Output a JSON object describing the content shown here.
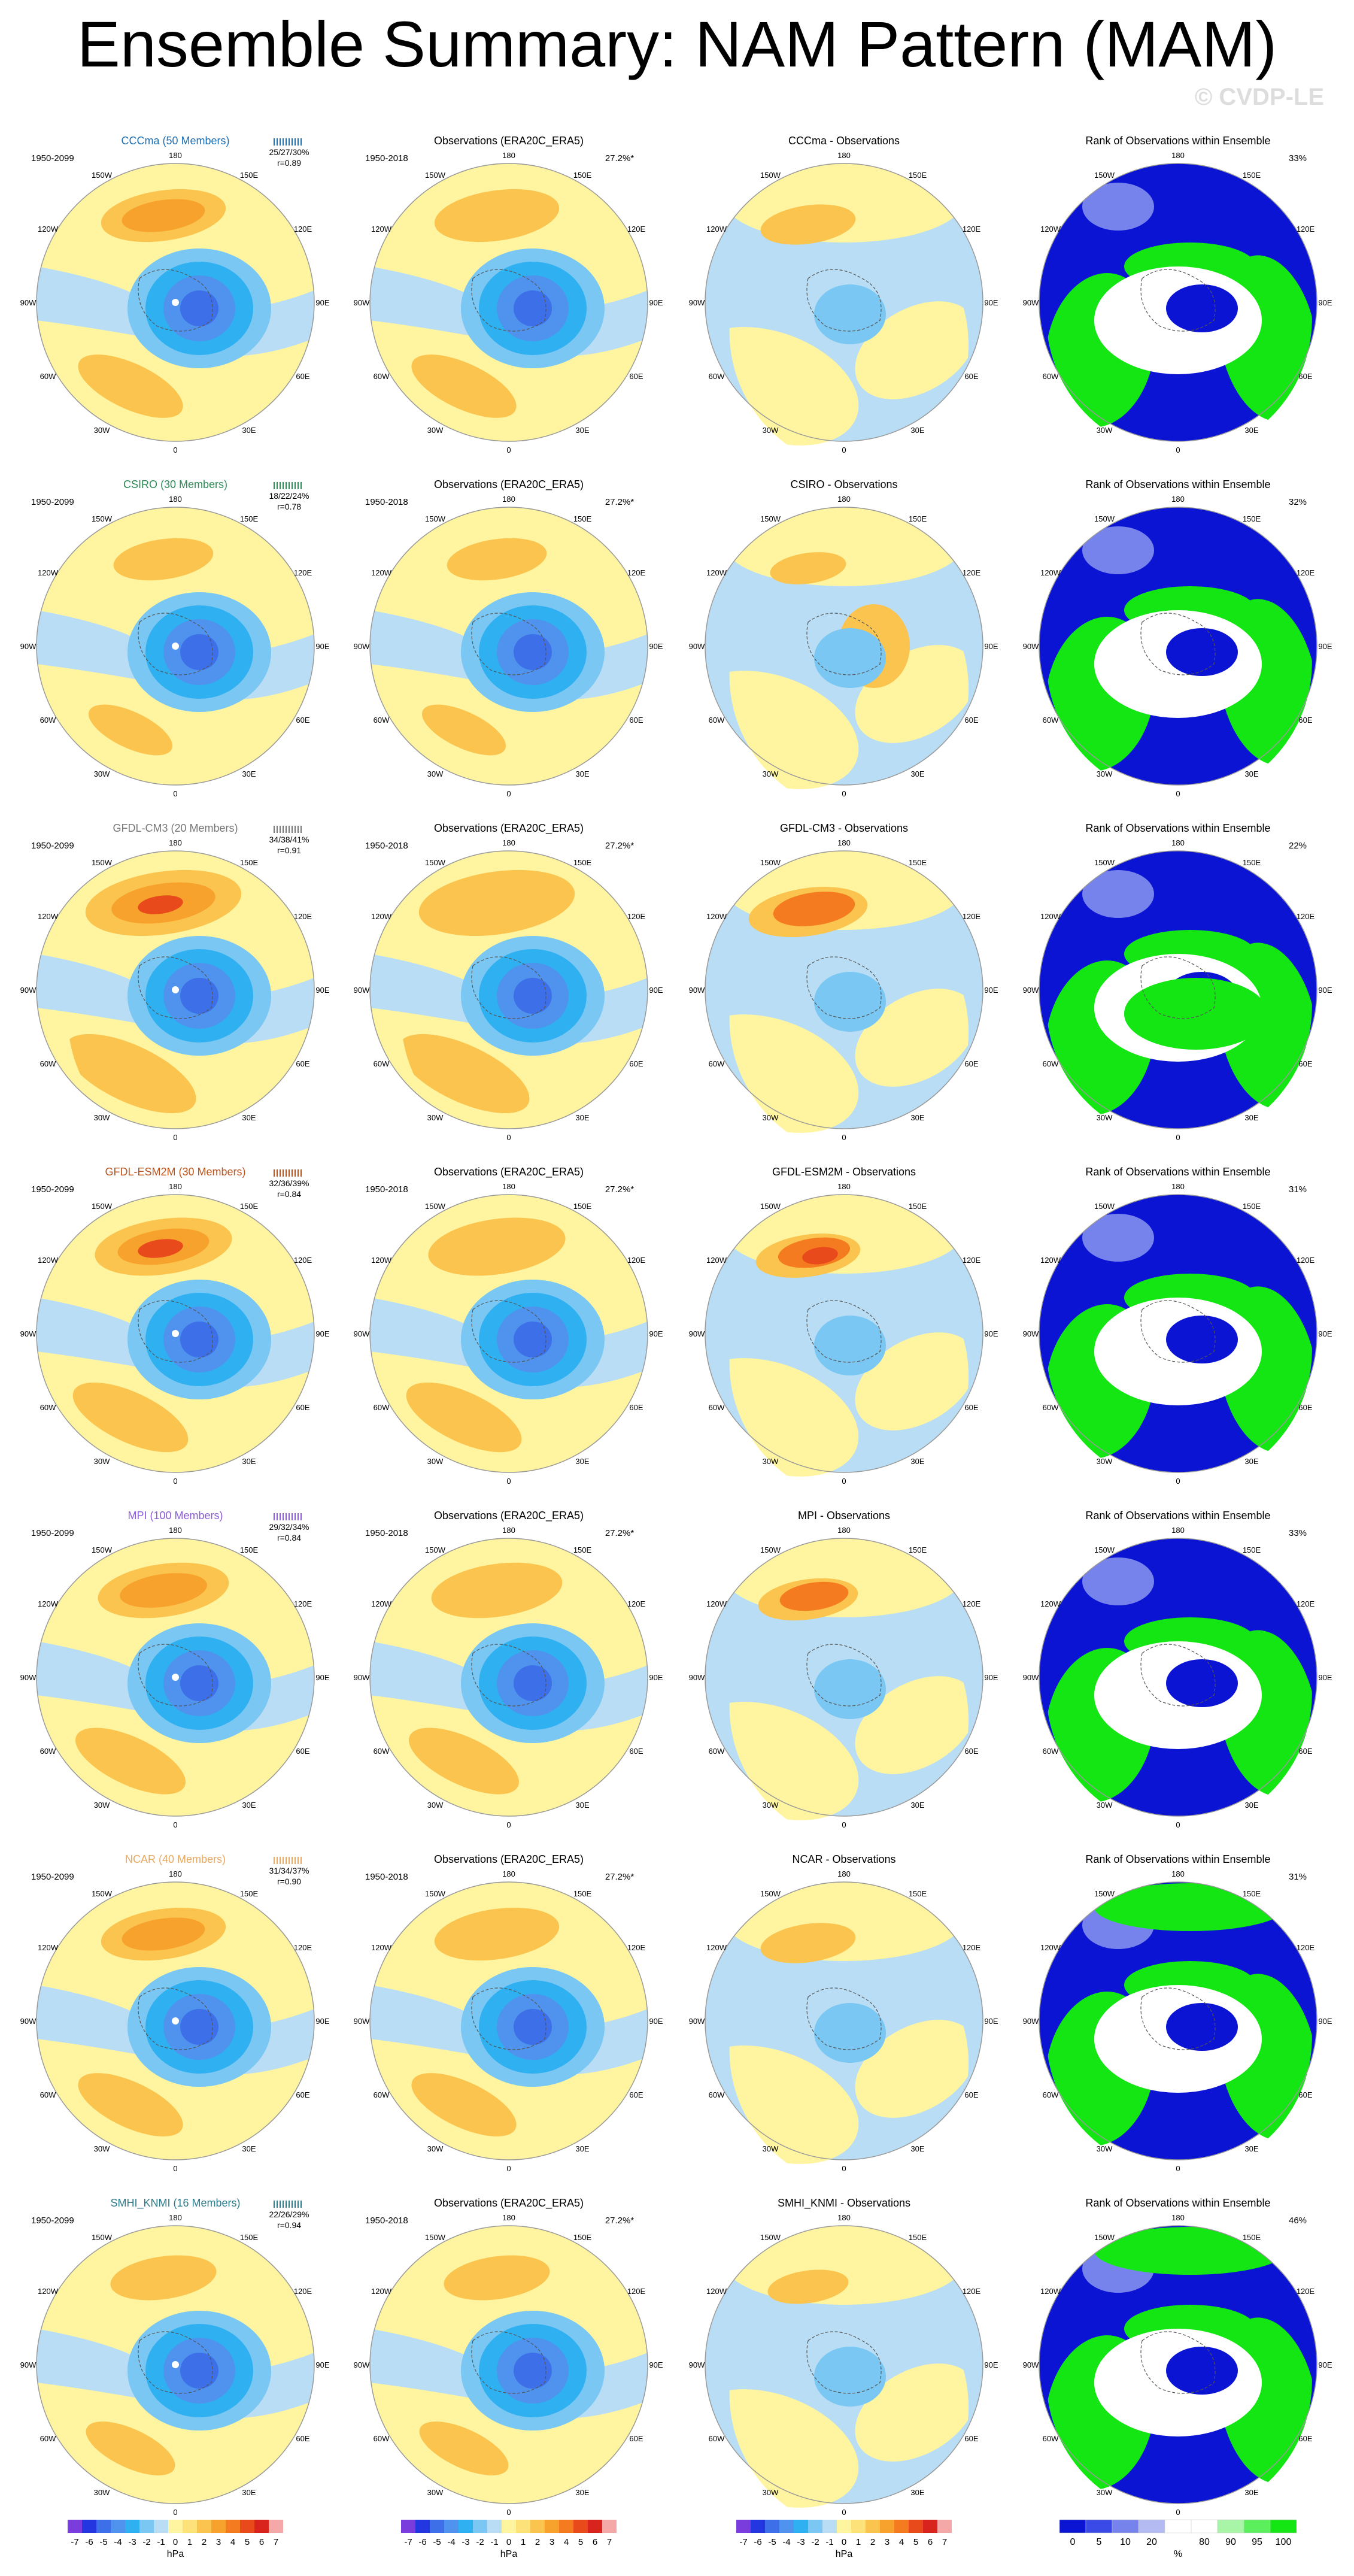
{
  "title": "Ensemble Summary: NAM Pattern (MAM)",
  "watermark": "© CVDP-LE",
  "map_lon_labels": [
    "180",
    "150E",
    "120E",
    "90E",
    "60E",
    "30E",
    "0",
    "30W",
    "60W",
    "90W",
    "120W",
    "150W"
  ],
  "colors": {
    "nam_scale": [
      "#7a3cdc",
      "#2436e0",
      "#3d6fe8",
      "#4f93ee",
      "#2fb0f0",
      "#79c7f2",
      "#b8ddf4",
      "#fff5a0",
      "#fde27a",
      "#fbc44e",
      "#f8a22e",
      "#f57b20",
      "#e84a1c",
      "#d8241c",
      "#f5a8a8"
    ],
    "rank_scale": [
      "#0a14d2",
      "#3a4ae6",
      "#7683ec",
      "#b4bbf2",
      "#ffffff",
      "#ffffff",
      "#a8f5a8",
      "#5cef5c",
      "#14e614"
    ],
    "model_names": [
      "#1e6eb2",
      "#2e8b57",
      "#777777",
      "#b8541e",
      "#8a5cd6",
      "#e8a860",
      "#2b7a8a"
    ]
  },
  "rows": [
    {
      "model": "CCCma (50 Members)",
      "model_short": "CCCma",
      "model_period": "1950-2099",
      "obs_period": "1950-2018",
      "pct_obs": "27.2%*",
      "stats": "25/27/30%",
      "r": "r=0.89",
      "diff_title": "CCCma - Observations",
      "rank_pct": "33%"
    },
    {
      "model": "CSIRO (30 Members)",
      "model_short": "CSIRO",
      "model_period": "1950-2099",
      "obs_period": "1950-2018",
      "pct_obs": "27.2%*",
      "stats": "18/22/24%",
      "r": "r=0.78",
      "diff_title": "CSIRO - Observations",
      "rank_pct": "32%"
    },
    {
      "model": "GFDL-CM3 (20 Members)",
      "model_short": "GFDL-CM3",
      "model_period": "1950-2099",
      "obs_period": "1950-2018",
      "pct_obs": "27.2%*",
      "stats": "34/38/41%",
      "r": "r=0.91",
      "diff_title": "GFDL-CM3 - Observations",
      "rank_pct": "22%"
    },
    {
      "model": "GFDL-ESM2M (30 Members)",
      "model_short": "GFDL-ESM2M",
      "model_period": "1950-2099",
      "obs_period": "1950-2018",
      "pct_obs": "27.2%*",
      "stats": "32/36/39%",
      "r": "r=0.84",
      "diff_title": "GFDL-ESM2M - Observations",
      "rank_pct": "31%"
    },
    {
      "model": "MPI (100 Members)",
      "model_short": "MPI",
      "model_period": "1950-2099",
      "obs_period": "1950-2018",
      "pct_obs": "27.2%*",
      "stats": "29/32/34%",
      "r": "r=0.84",
      "diff_title": "MPI - Observations",
      "rank_pct": "33%"
    },
    {
      "model": "NCAR (40 Members)",
      "model_short": "NCAR",
      "model_period": "1950-2099",
      "obs_period": "1950-2018",
      "pct_obs": "27.2%*",
      "stats": "31/34/37%",
      "r": "r=0.90",
      "diff_title": "NCAR - Observations",
      "rank_pct": "31%"
    },
    {
      "model": "SMHI_KNMI (16 Members)",
      "model_short": "SMHI_KNMI",
      "model_period": "1950-2099",
      "obs_period": "1950-2018",
      "pct_obs": "27.2%*",
      "stats": "22/26/29%",
      "r": "r=0.94",
      "diff_title": "SMHI_KNMI - Observations",
      "rank_pct": "46%"
    }
  ],
  "column_titles": {
    "obs": "Observations (ERA20C_ERA5)",
    "rank": "Rank of Observations within Ensemble"
  },
  "nam_colorbar": {
    "labels": [
      "-7",
      "-6",
      "-5",
      "-4",
      "-3",
      "-2",
      "-1",
      "0",
      "1",
      "2",
      "3",
      "4",
      "5",
      "6",
      "7"
    ],
    "unit": "hPa"
  },
  "rank_colorbar": {
    "labels": [
      "0",
      "5",
      "10",
      "20",
      "80",
      "90",
      "95",
      "100"
    ],
    "unit": "%"
  }
}
